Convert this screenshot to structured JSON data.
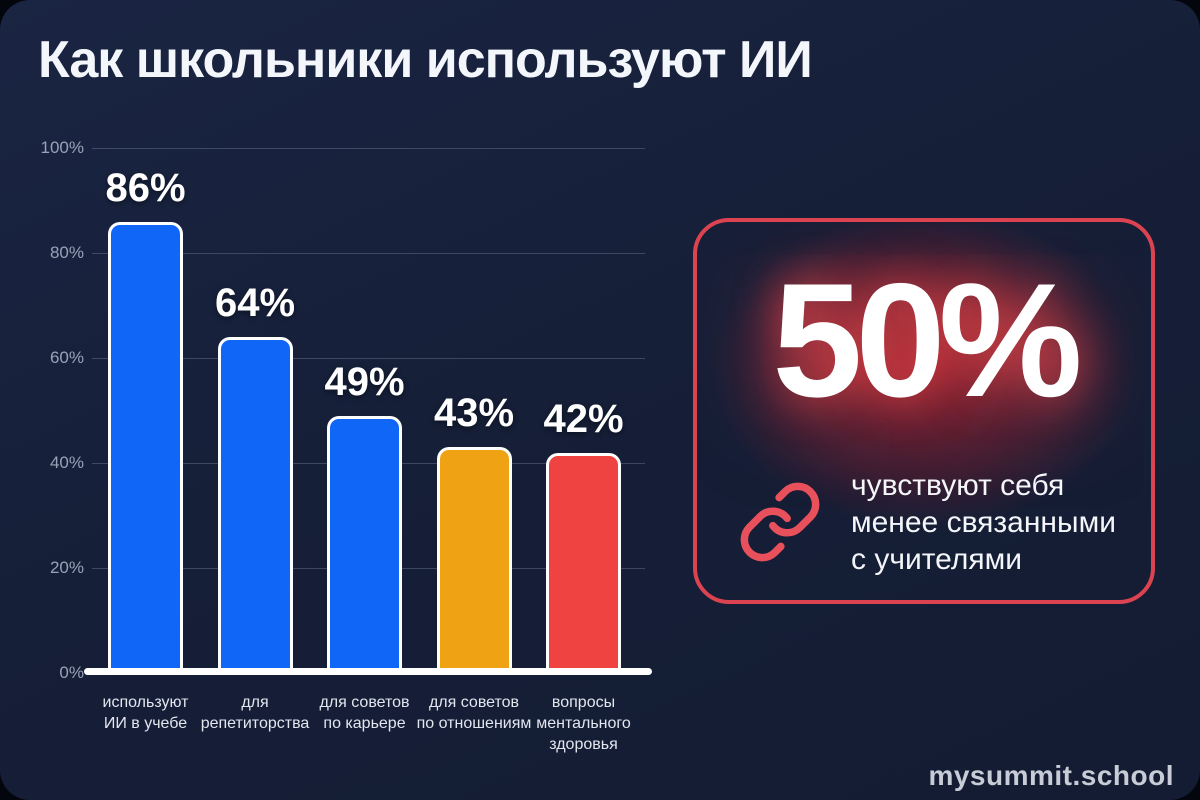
{
  "title": "Как школьники используют ИИ",
  "brand": "mysummit.school",
  "colors": {
    "background": "#04060d",
    "card_background": "#161f38",
    "bar_blue": "#0f66f7",
    "bar_orange": "#f0a215",
    "bar_red": "#ee4341",
    "accent_red_border": "#dc4350",
    "axis_label": "#99a2b6",
    "text_white": "#f3f6fb"
  },
  "chart_data": {
    "type": "bar",
    "title": "Как школьники используют ИИ",
    "categories": [
      "используют\nИИ в учебе",
      "для\nрепетиторства",
      "для советов\nпо карьере",
      "для советов\nпо отношениям",
      "вопросы\nментального\nздоровья"
    ],
    "values": [
      86,
      64,
      49,
      43,
      42
    ],
    "value_labels": [
      "86%",
      "64%",
      "49%",
      "43%",
      "42%"
    ],
    "bar_colors": [
      "#0f66f7",
      "#0f66f7",
      "#0f66f7",
      "#f0a215",
      "#ee4341"
    ],
    "y_ticks": [
      100,
      80,
      60,
      40,
      20,
      0
    ],
    "y_tick_labels": [
      "100%",
      "80%",
      "60%",
      "40%",
      "20%",
      "0%"
    ],
    "ylim": [
      0,
      100
    ],
    "grid": true,
    "legend": false
  },
  "stat_card": {
    "value": "50%",
    "description": "чувствуют себя\nменее связанными\nс учителями",
    "icon": "link-icon"
  }
}
